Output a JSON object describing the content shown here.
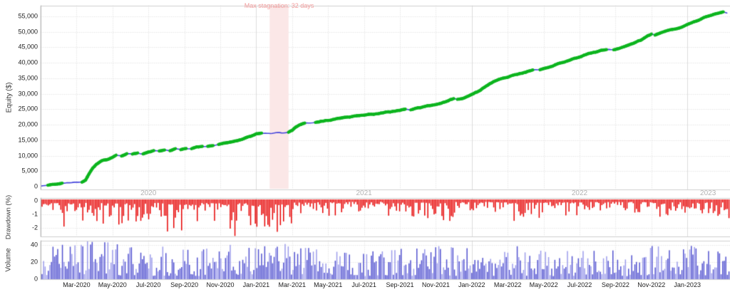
{
  "axes": {
    "equity_title": "Equity ($)",
    "drawdown_title": "Drawdown (%)",
    "volume_title": "Volume",
    "equity_ticks": [
      "0",
      "5,000",
      "10,000",
      "15,000",
      "20,000",
      "25,000",
      "30,000",
      "35,000",
      "40,000",
      "45,000",
      "50,000",
      "55,000"
    ],
    "drawdown_ticks": [
      "0",
      "-1",
      "-2"
    ],
    "volume_ticks": [
      "40",
      "20",
      "0"
    ],
    "x_ticks": [
      "Mar-2020",
      "May-2020",
      "Jul-2020",
      "Sep-2020",
      "Nov-2020",
      "Jan-2021",
      "Mar-2021",
      "May-2021",
      "Jul-2021",
      "Sep-2021",
      "Nov-2021",
      "Jan-2022",
      "Mar-2022",
      "May-2022",
      "Jul-2022",
      "Sep-2022",
      "Nov-2022",
      "Jan-2023"
    ],
    "year_labels": [
      "2020",
      "2021",
      "2022",
      "2023"
    ]
  },
  "colors": {
    "equity_line": "#4343dc",
    "equity_highlight": "#0cb41e",
    "drawdown_bar": "#e60000",
    "volume_bar": "#5151cf",
    "volume_bar_light": "#9b9bea",
    "grid": "#e9e9e9",
    "year_line": "#dcdcdc",
    "panel_border": "#cfcfcf",
    "axis_line": "#b0b0b0",
    "stagnation_band": "#fbe7e7",
    "stagnation_text": "#f19a9a"
  },
  "chart_data": [
    {
      "type": "line",
      "name": "equity",
      "ylabel": "Equity ($)",
      "x_unit": "months since Jan-2020",
      "y_unit": "thousand $",
      "ylim": [
        0,
        58
      ],
      "xlim": [
        0,
        38.4
      ],
      "grid": "dotted",
      "stagnation": {
        "label": "Max stagnation: 32 days",
        "start_month": 12.75,
        "end_month": 13.8
      },
      "points": [
        [
          0,
          0.3
        ],
        [
          0.4,
          0.5
        ],
        [
          0.8,
          0.8
        ],
        [
          1.2,
          1.1
        ],
        [
          1.6,
          1.3
        ],
        [
          2.0,
          1.5
        ],
        [
          2.3,
          1.6
        ],
        [
          2.5,
          2.2
        ],
        [
          2.7,
          4.2
        ],
        [
          2.9,
          6.0
        ],
        [
          3.1,
          7.2
        ],
        [
          3.4,
          8.2
        ],
        [
          3.7,
          8.8
        ],
        [
          4.0,
          9.6
        ],
        [
          4.2,
          10.3
        ],
        [
          4.5,
          10.0
        ],
        [
          4.8,
          10.7
        ],
        [
          5.1,
          10.5
        ],
        [
          5.4,
          10.9
        ],
        [
          5.7,
          10.6
        ],
        [
          6.0,
          11.2
        ],
        [
          6.3,
          11.6
        ],
        [
          6.6,
          11.4
        ],
        [
          6.9,
          11.8
        ],
        [
          7.2,
          11.6
        ],
        [
          7.5,
          12.1
        ],
        [
          7.8,
          11.9
        ],
        [
          8.1,
          12.4
        ],
        [
          8.4,
          12.2
        ],
        [
          8.7,
          12.8
        ],
        [
          9.0,
          13.1
        ],
        [
          9.3,
          12.9
        ],
        [
          9.6,
          13.4
        ],
        [
          9.9,
          13.6
        ],
        [
          10.2,
          14.0
        ],
        [
          10.5,
          14.3
        ],
        [
          10.8,
          14.7
        ],
        [
          11.1,
          15.2
        ],
        [
          11.4,
          15.7
        ],
        [
          11.7,
          16.3
        ],
        [
          12.0,
          17.0
        ],
        [
          12.3,
          17.3
        ],
        [
          12.6,
          17.2
        ],
        [
          12.9,
          17.3
        ],
        [
          13.2,
          17.4
        ],
        [
          13.5,
          17.3
        ],
        [
          13.8,
          17.5
        ],
        [
          14.0,
          18.2
        ],
        [
          14.2,
          19.3
        ],
        [
          14.4,
          20.0
        ],
        [
          14.7,
          20.5
        ],
        [
          15.0,
          20.6
        ],
        [
          15.3,
          20.8
        ],
        [
          15.6,
          21.1
        ],
        [
          16.0,
          21.4
        ],
        [
          16.4,
          21.9
        ],
        [
          16.8,
          22.2
        ],
        [
          17.2,
          22.5
        ],
        [
          17.6,
          22.8
        ],
        [
          18.0,
          23.1
        ],
        [
          18.4,
          23.4
        ],
        [
          18.8,
          23.7
        ],
        [
          19.2,
          24.0
        ],
        [
          19.6,
          24.3
        ],
        [
          20.0,
          24.7
        ],
        [
          20.3,
          25.1
        ],
        [
          20.6,
          24.9
        ],
        [
          21.0,
          25.4
        ],
        [
          21.4,
          25.9
        ],
        [
          21.8,
          26.3
        ],
        [
          22.2,
          26.8
        ],
        [
          22.5,
          27.3
        ],
        [
          22.8,
          28.0
        ],
        [
          23.0,
          28.3
        ],
        [
          23.2,
          28.1
        ],
        [
          23.5,
          28.5
        ],
        [
          23.8,
          29.2
        ],
        [
          24.1,
          30.0
        ],
        [
          24.4,
          30.9
        ],
        [
          24.7,
          32.0
        ],
        [
          25.0,
          33.2
        ],
        [
          25.3,
          34.1
        ],
        [
          25.6,
          34.8
        ],
        [
          26.0,
          35.4
        ],
        [
          26.4,
          36.0
        ],
        [
          26.8,
          36.6
        ],
        [
          27.1,
          37.3
        ],
        [
          27.4,
          37.7
        ],
        [
          27.8,
          37.7
        ],
        [
          28.1,
          38.3
        ],
        [
          28.5,
          39.1
        ],
        [
          28.9,
          39.9
        ],
        [
          29.3,
          40.6
        ],
        [
          29.7,
          41.4
        ],
        [
          30.1,
          42.1
        ],
        [
          30.5,
          42.9
        ],
        [
          30.9,
          43.5
        ],
        [
          31.2,
          44.0
        ],
        [
          31.5,
          44.3
        ],
        [
          31.9,
          44.2
        ],
        [
          32.2,
          44.7
        ],
        [
          32.6,
          45.4
        ],
        [
          33.0,
          46.3
        ],
        [
          33.4,
          47.4
        ],
        [
          33.7,
          48.5
        ],
        [
          34.0,
          49.3
        ],
        [
          34.2,
          49.1
        ],
        [
          34.5,
          49.7
        ],
        [
          34.9,
          50.3
        ],
        [
          35.3,
          50.9
        ],
        [
          35.7,
          51.6
        ],
        [
          36.1,
          52.6
        ],
        [
          36.5,
          53.6
        ],
        [
          36.9,
          54.6
        ],
        [
          37.3,
          55.3
        ],
        [
          37.7,
          56.0
        ],
        [
          38.0,
          56.4
        ],
        [
          38.2,
          56.1
        ]
      ]
    },
    {
      "type": "bar",
      "name": "drawdown",
      "ylabel": "Drawdown (%)",
      "ylim": [
        -3,
        0
      ],
      "grid": "dotted",
      "monthly_max_depth_pct": [
        1.6,
        1.9,
        1.5,
        1.7,
        1.9,
        1.6,
        1.4,
        2.6,
        1.5,
        1.7,
        2.6,
        1.8,
        2.2,
        2.7,
        1.3,
        0.9,
        1.1,
        0.8,
        0.7,
        1.2,
        1.4,
        1.3,
        1.6,
        0.9,
        0.8,
        1.0,
        1.7,
        1.4,
        0.9,
        1.1,
        0.8,
        0.9,
        0.7,
        0.9,
        1.3,
        1.1,
        1.5,
        1.2,
        1.3
      ]
    },
    {
      "type": "bar",
      "name": "volume",
      "ylabel": "Volume",
      "ylim": [
        0,
        45
      ],
      "grid": "dotted",
      "monthly_max": [
        38,
        40,
        45,
        43,
        42,
        40,
        38,
        40,
        37,
        39,
        42,
        38,
        40,
        42,
        38,
        36,
        38,
        35,
        36,
        38,
        40,
        37,
        39,
        36,
        35,
        38,
        40,
        38,
        36,
        38,
        37,
        36,
        35,
        37,
        39,
        38,
        40,
        37,
        36
      ]
    }
  ],
  "seed": 1337
}
